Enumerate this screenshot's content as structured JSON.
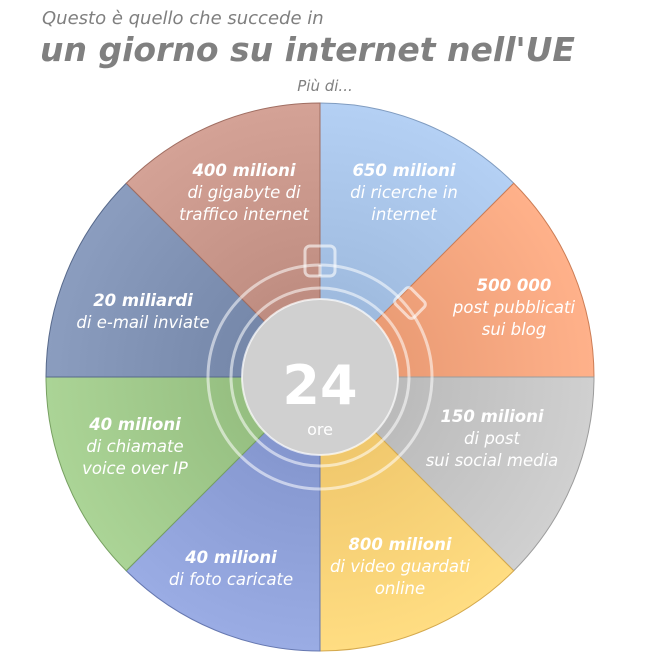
{
  "header": {
    "subtitle": "Questo è quello che succede in",
    "title": "un giorno su internet nell'UE",
    "intro": "Più di..."
  },
  "center": {
    "value": "24",
    "unit": "ore"
  },
  "segments": [
    {
      "id": "searches",
      "bold": "650 milioni",
      "lines": [
        "di ricerche in",
        "internet"
      ],
      "color": "#a8c4e8"
    },
    {
      "id": "blog-posts",
      "bold": "500 000",
      "lines": [
        "post pubblicati",
        "sui blog"
      ],
      "color": "#f4a57e"
    },
    {
      "id": "social-posts",
      "bold": "150 milioni",
      "lines": [
        "di post",
        "sui social media"
      ],
      "color": "#c4c4c4"
    },
    {
      "id": "videos",
      "bold": "800 milioni",
      "lines": [
        "di video guardati",
        "online"
      ],
      "color": "#fcd176"
    },
    {
      "id": "photos",
      "bold": "40 milioni",
      "lines": [
        "di foto caricate"
      ],
      "color": "#8ea0d8"
    },
    {
      "id": "voip-calls",
      "bold": "40 milioni",
      "lines": [
        "di chiamate",
        "voice over IP"
      ],
      "color": "#9fc88a"
    },
    {
      "id": "emails",
      "bold": "20 miliardi",
      "lines": [
        "di e-mail inviate"
      ],
      "color": "#7f91b3"
    },
    {
      "id": "internet-traffic",
      "bold": "400 milioni",
      "lines": [
        "di gigabyte di",
        "traffico internet"
      ],
      "color": "#c8968a"
    }
  ]
}
